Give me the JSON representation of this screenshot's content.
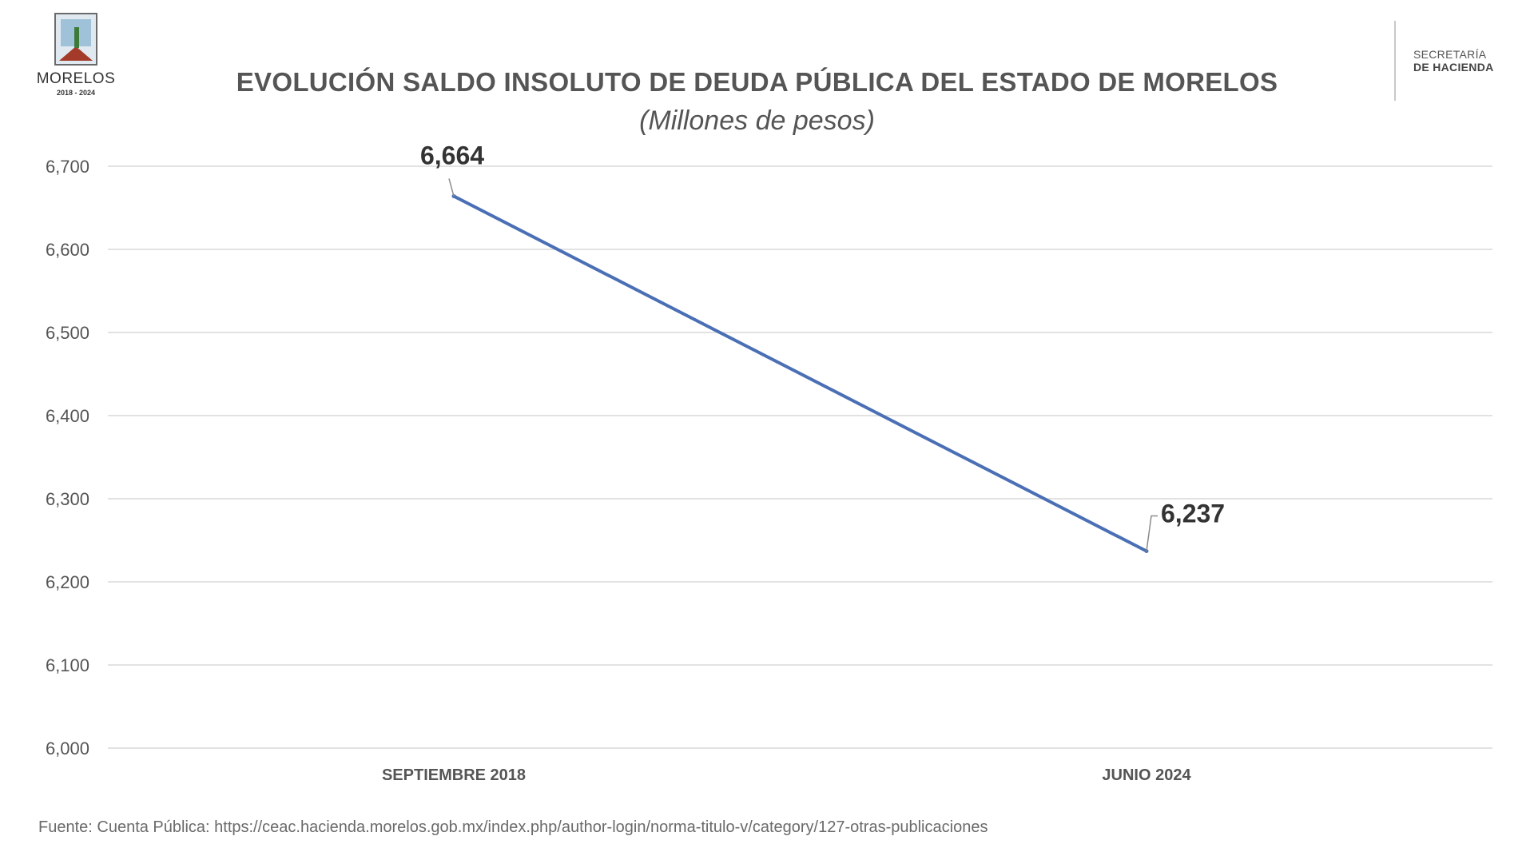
{
  "header": {
    "left_logo": {
      "icon": "morelos-crest-icon",
      "name": "MORELOS",
      "years": "2018 - 2024"
    },
    "right_logo": {
      "line1": "SECRETARÍA",
      "line2": "DE HACIENDA"
    }
  },
  "chart_data": {
    "type": "line",
    "title": "EVOLUCIÓN SALDO INSOLUTO DE DEUDA PÚBLICA DEL ESTADO DE MORELOS",
    "subtitle": "(Millones de pesos)",
    "xlabel": "",
    "ylabel": "",
    "categories": [
      "SEPTIEMBRE 2018",
      "JUNIO 2024"
    ],
    "series": [
      {
        "values": [
          6664,
          6237
        ],
        "color": "#4a6fb5"
      }
    ],
    "data_labels": [
      "6,664",
      "6,237"
    ],
    "ylim": [
      6000,
      6700
    ],
    "y_ticks": [
      6000,
      6100,
      6200,
      6300,
      6400,
      6500,
      6600,
      6700
    ],
    "y_tick_labels": [
      "6,000",
      "6,100",
      "6,200",
      "6,300",
      "6,400",
      "6,500",
      "6,600",
      "6,700"
    ],
    "grid": true,
    "legend": "none"
  },
  "footer": {
    "source": "Fuente:  Cuenta Pública: https://ceac.hacienda.morelos.gob.mx/index.php/author-login/norma-titulo-v/category/127-otras-publicaciones"
  }
}
